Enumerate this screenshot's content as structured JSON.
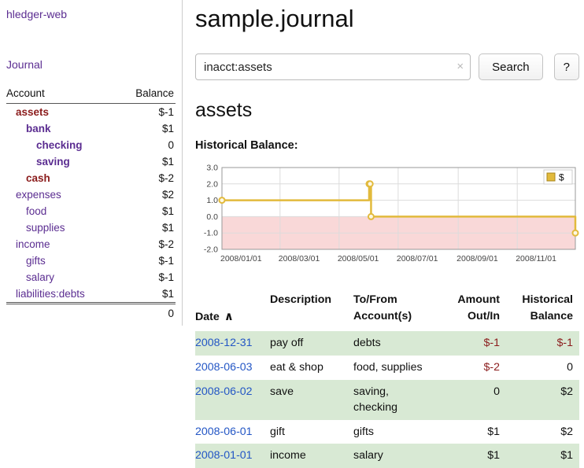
{
  "colors": {
    "link_purple": "#5b2d91",
    "date_blue": "#2356c5",
    "neg_strong": "#8b1c1c",
    "neg_muted": "#c07f7f",
    "row_green": "#d8e9d4"
  },
  "sidebar": {
    "app_title": "hledger-web",
    "journal_label": "Journal",
    "accounts_header": {
      "account": "Account",
      "balance": "Balance"
    },
    "accounts": [
      {
        "name": "assets",
        "depth": 1,
        "bold": true,
        "highlight": true,
        "balance": "$-1",
        "balance_neg": "strong"
      },
      {
        "name": "bank",
        "depth": 2,
        "bold": true,
        "highlight": false,
        "balance": "$1",
        "balance_neg": "none"
      },
      {
        "name": "checking",
        "depth": 3,
        "bold": true,
        "highlight": false,
        "balance": "0",
        "balance_neg": "none"
      },
      {
        "name": "saving",
        "depth": 3,
        "bold": true,
        "highlight": false,
        "balance": "$1",
        "balance_neg": "none"
      },
      {
        "name": "cash",
        "depth": 2,
        "bold": true,
        "highlight": true,
        "balance": "$-2",
        "balance_neg": "strong"
      },
      {
        "name": "expenses",
        "depth": 1,
        "bold": false,
        "highlight": false,
        "balance": "$2",
        "balance_neg": "none"
      },
      {
        "name": "food",
        "depth": 2,
        "bold": false,
        "highlight": false,
        "balance": "$1",
        "balance_neg": "none"
      },
      {
        "name": "supplies",
        "depth": 2,
        "bold": false,
        "highlight": false,
        "balance": "$1",
        "balance_neg": "none"
      },
      {
        "name": "income",
        "depth": 1,
        "bold": false,
        "highlight": false,
        "balance": "$-2",
        "balance_neg": "muted"
      },
      {
        "name": "gifts",
        "depth": 2,
        "bold": false,
        "highlight": false,
        "balance": "$-1",
        "balance_neg": "muted"
      },
      {
        "name": "salary",
        "depth": 2,
        "bold": false,
        "highlight": false,
        "balance": "$-1",
        "balance_neg": "muted"
      },
      {
        "name": "liabilities:debts",
        "depth": 1,
        "bold": false,
        "highlight": false,
        "balance": "$1",
        "balance_neg": "none"
      }
    ],
    "total": "0"
  },
  "main": {
    "title": "sample.journal",
    "search": {
      "value": "inacct:assets",
      "clear_icon": "×",
      "button_label": "Search",
      "help_label": "?"
    },
    "account_heading": "assets",
    "chart_title": "Historical Balance:"
  },
  "register": {
    "headers": {
      "date": "Date",
      "sort_icon": "∧",
      "description": "Description",
      "tofrom": "To/From\nAccount(s)",
      "amount": "Amount\nOut/In",
      "balance": "Historical\nBalance"
    },
    "rows": [
      {
        "date": "2008-12-31",
        "description": "pay off",
        "accounts": "debts",
        "amount": "$-1",
        "amount_neg": true,
        "balance": "$-1",
        "balance_neg": true
      },
      {
        "date": "2008-06-03",
        "description": "eat & shop",
        "accounts": "food, supplies",
        "amount": "$-2",
        "amount_neg": true,
        "balance": "0",
        "balance_neg": false
      },
      {
        "date": "2008-06-02",
        "description": "save",
        "accounts": "saving,\nchecking",
        "amount": "0",
        "amount_neg": false,
        "balance": "$2",
        "balance_neg": false
      },
      {
        "date": "2008-06-01",
        "description": "gift",
        "accounts": "gifts",
        "amount": "$1",
        "amount_neg": false,
        "balance": "$2",
        "balance_neg": false
      },
      {
        "date": "2008-01-01",
        "description": "income",
        "accounts": "salary",
        "amount": "$1",
        "amount_neg": false,
        "balance": "$1",
        "balance_neg": false
      }
    ]
  },
  "chart_data": {
    "type": "line",
    "step": true,
    "title": "Historical Balance:",
    "xlabel": "",
    "ylabel": "",
    "ylim": [
      -2,
      3
    ],
    "x_domain": [
      "2008-01-01",
      "2008-12-31"
    ],
    "y_ticks": [
      {
        "v": 3,
        "label": "3.0"
      },
      {
        "v": 2,
        "label": "2.0"
      },
      {
        "v": 1,
        "label": "1.0"
      },
      {
        "v": 0,
        "label": "0.0"
      },
      {
        "v": -1,
        "label": "-1.0"
      },
      {
        "v": -2,
        "label": "-2.0"
      }
    ],
    "x_ticks": [
      {
        "date": "2008-01-01",
        "label": "2008/01/01"
      },
      {
        "date": "2008-03-01",
        "label": "2008/03/01"
      },
      {
        "date": "2008-05-01",
        "label": "2008/05/01"
      },
      {
        "date": "2008-07-01",
        "label": "2008/07/01"
      },
      {
        "date": "2008-09-01",
        "label": "2008/09/01"
      },
      {
        "date": "2008-11-01",
        "label": "2008/11/01"
      }
    ],
    "grid": true,
    "legend_position": "top-right",
    "negative_region_color": "#f9d8d8",
    "series": [
      {
        "name": "$",
        "color": "#e2ba3c",
        "points": [
          {
            "x": "2008-01-01",
            "y": 1
          },
          {
            "x": "2008-06-01",
            "y": 2
          },
          {
            "x": "2008-06-02",
            "y": 2
          },
          {
            "x": "2008-06-03",
            "y": 0
          },
          {
            "x": "2008-12-31",
            "y": -1
          }
        ]
      }
    ]
  }
}
